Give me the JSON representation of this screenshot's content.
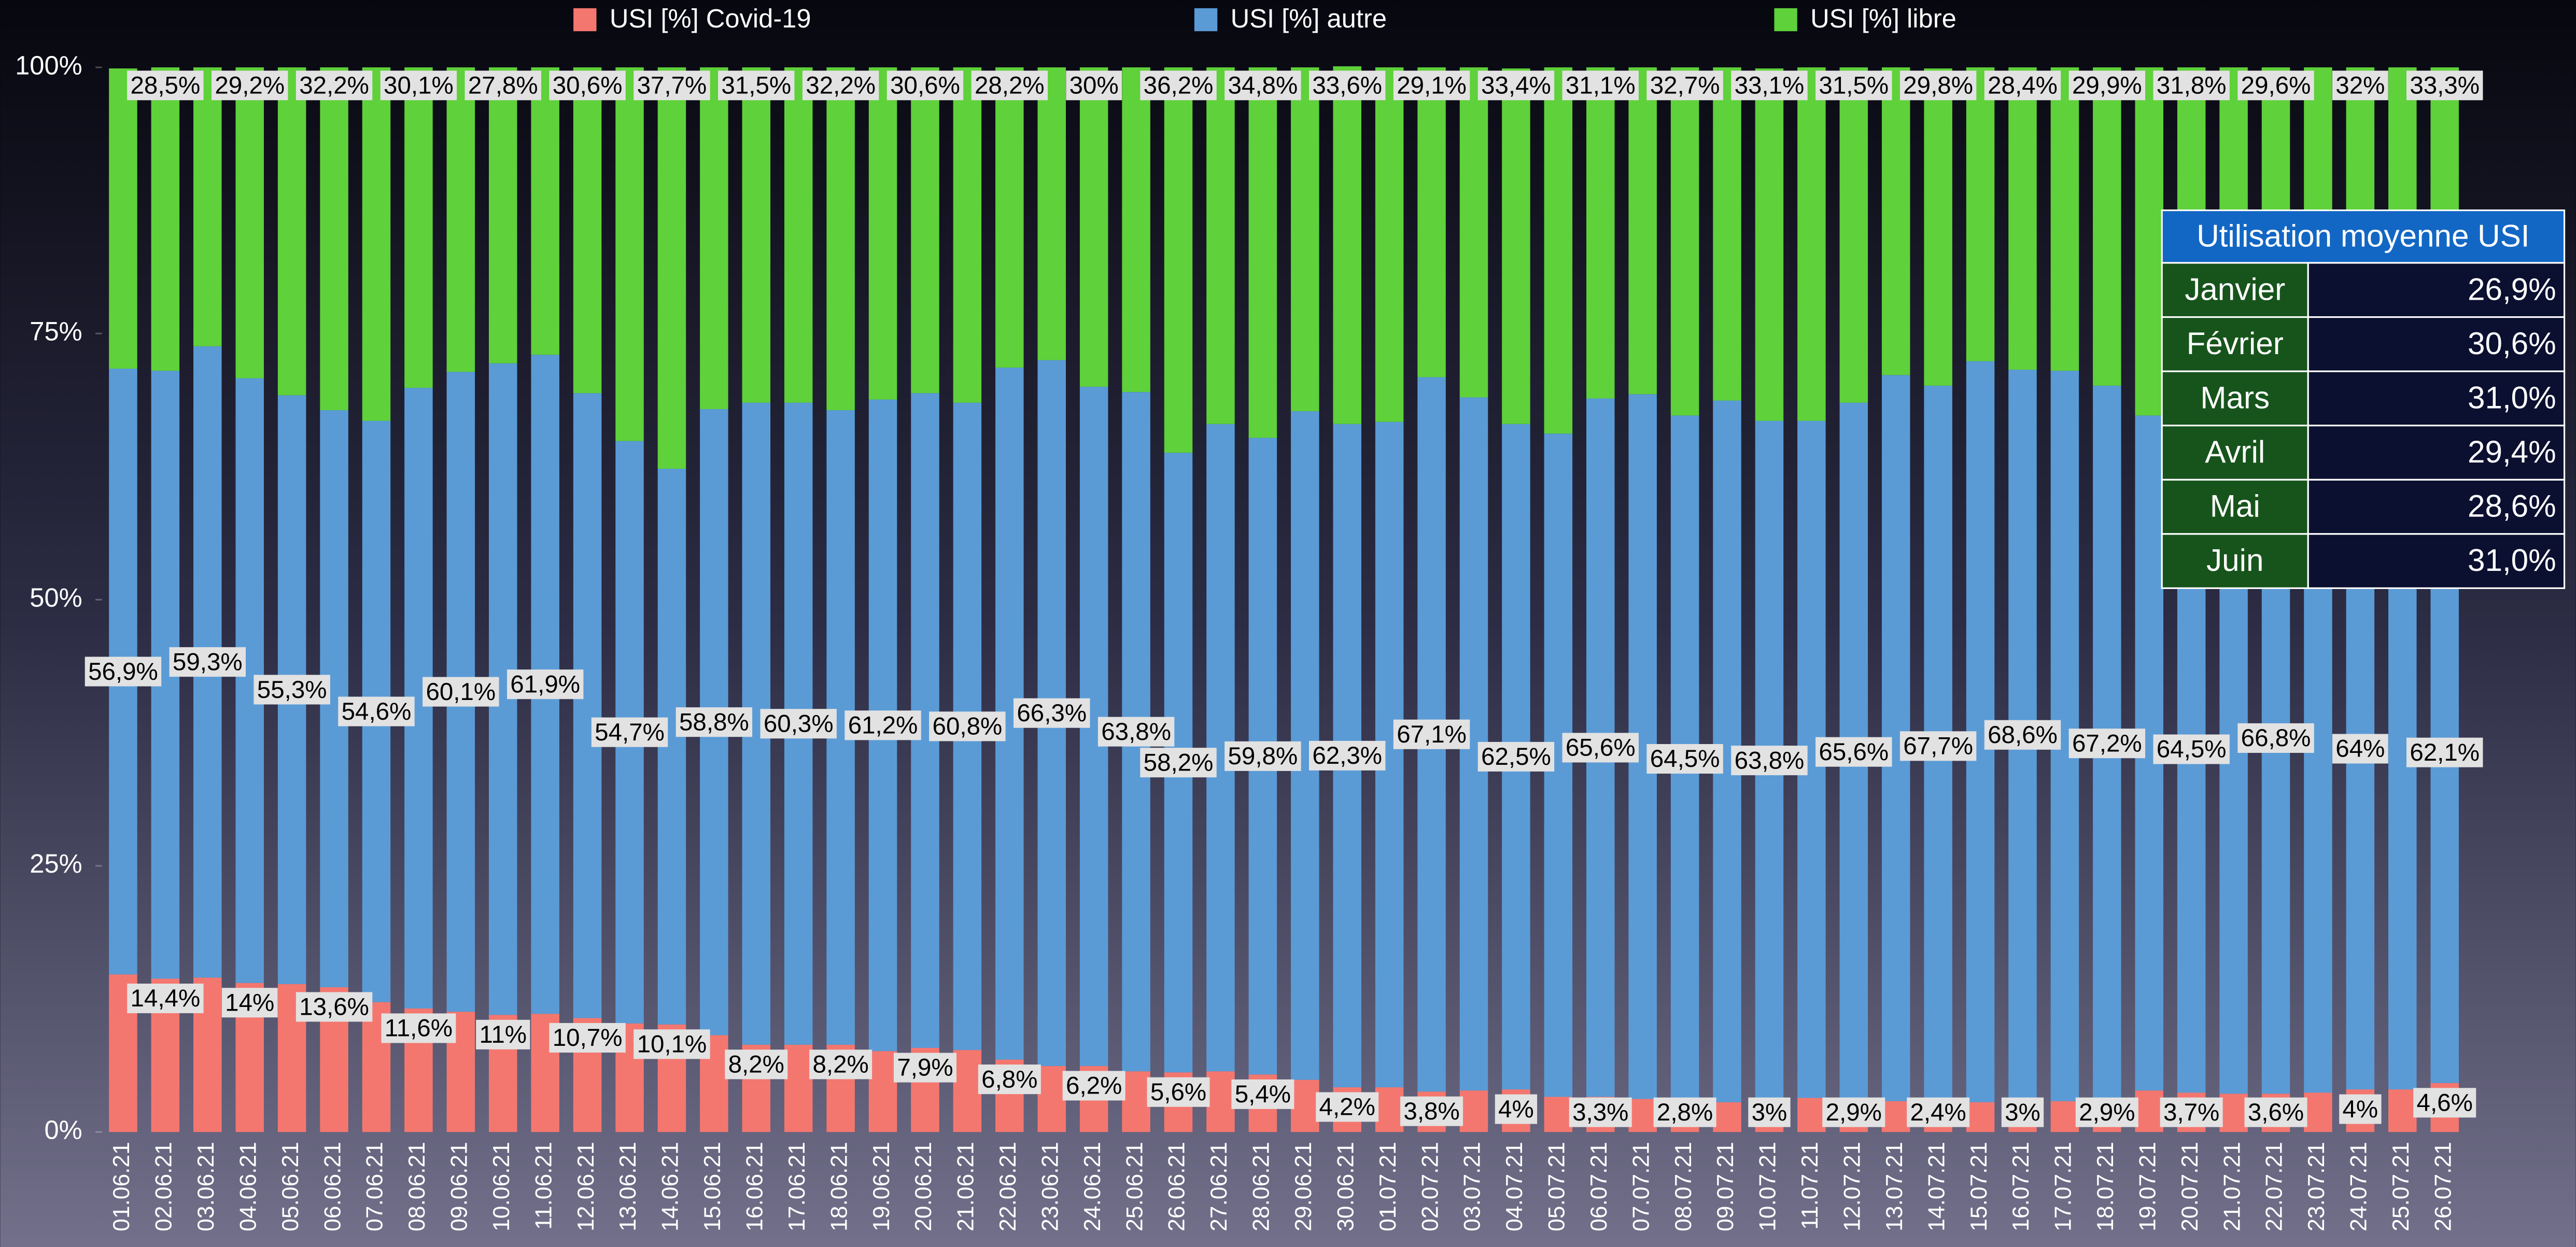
{
  "chart_data": {
    "type": "stacked_bar",
    "categories": [
      "01.06.21",
      "02.06.21",
      "03.06.21",
      "04.06.21",
      "05.06.21",
      "06.06.21",
      "07.06.21",
      "08.06.21",
      "09.06.21",
      "10.06.21",
      "11.06.21",
      "12.06.21",
      "13.06.21",
      "14.06.21",
      "15.06.21",
      "16.06.21",
      "17.06.21",
      "18.06.21",
      "19.06.21",
      "20.06.21",
      "21.06.21",
      "22.06.21",
      "23.06.21",
      "24.06.21",
      "25.06.21",
      "26.06.21",
      "27.06.21",
      "28.06.21",
      "29.06.21",
      "30.06.21",
      "01.07.21",
      "02.07.21",
      "03.07.21",
      "04.07.21",
      "05.07.21",
      "06.07.21",
      "07.07.21",
      "08.07.21",
      "09.07.21",
      "10.07.21",
      "11.07.21",
      "12.07.21",
      "13.07.21",
      "14.07.21",
      "15.07.21",
      "16.07.21",
      "17.07.21",
      "18.07.21",
      "19.07.21",
      "20.07.21",
      "21.07.21",
      "22.07.21",
      "23.07.21",
      "24.07.21",
      "25.07.21",
      "26.07.21"
    ],
    "series": [
      {
        "name": "USI [%] Covid-19",
        "color": "#f4776f",
        "values": [
          14.8,
          14.4,
          14.5,
          14,
          13.9,
          13.6,
          12.2,
          11.6,
          11.3,
          11,
          11.1,
          10.7,
          10.2,
          10.1,
          9.1,
          8.2,
          8.2,
          8.2,
          7.6,
          7.9,
          7.7,
          6.8,
          6.2,
          6.2,
          5.7,
          5.6,
          5.7,
          5.4,
          4.9,
          4.2,
          4.2,
          3.8,
          3.9,
          4,
          3.3,
          3.3,
          3.1,
          2.8,
          2.8,
          3,
          3.2,
          2.9,
          2.9,
          2.4,
          2.8,
          3,
          2.9,
          2.9,
          3.9,
          3.7,
          3.6,
          3.6,
          3.7,
          4,
          4,
          4.6
        ],
        "value_labels": [
          null,
          "14,4%",
          null,
          "14%",
          null,
          "13,6%",
          null,
          "11,6%",
          null,
          "11%",
          null,
          "10,7%",
          null,
          "10,1%",
          null,
          "8,2%",
          null,
          "8,2%",
          null,
          "7,9%",
          null,
          "6,8%",
          null,
          "6,2%",
          null,
          "5,6%",
          null,
          "5,4%",
          null,
          "4,2%",
          null,
          "3,8%",
          null,
          "4%",
          null,
          "3,3%",
          null,
          "2,8%",
          null,
          "3%",
          null,
          "2,9%",
          null,
          "2,4%",
          null,
          "3%",
          null,
          "2,9%",
          null,
          "3,7%",
          null,
          "3,6%",
          null,
          "4%",
          null,
          "4,6%"
        ]
      },
      {
        "name": "USI [%] autre",
        "color": "#5a9bd6",
        "values": [
          56.9,
          57.1,
          59.3,
          56.8,
          55.3,
          54.2,
          54.6,
          58.3,
          60.1,
          61.2,
          61.9,
          58.7,
          54.7,
          52.2,
          58.8,
          60.3,
          60.3,
          59.6,
          61.2,
          61.5,
          60.8,
          65,
          66.3,
          63.8,
          63.8,
          58.2,
          60.8,
          59.8,
          62.8,
          62.3,
          62.5,
          67.1,
          65.1,
          62.5,
          62.3,
          65.6,
          66.2,
          64.5,
          65.9,
          63.8,
          63.6,
          65.6,
          68.2,
          67.7,
          69.6,
          68.6,
          68.6,
          67.2,
          63.4,
          64.5,
          65.4,
          66.8,
          65.3,
          64,
          63,
          62.1
        ],
        "value_labels": [
          "56,9%",
          null,
          "59,3%",
          null,
          "55,3%",
          null,
          "54,6%",
          null,
          "60,1%",
          null,
          "61,9%",
          null,
          "54,7%",
          null,
          "58,8%",
          null,
          "60,3%",
          null,
          "61,2%",
          null,
          "60,8%",
          null,
          "66,3%",
          null,
          "63,8%",
          "58,2%",
          null,
          "59,8%",
          null,
          "62,3%",
          null,
          "67,1%",
          null,
          "62,5%",
          null,
          "65,6%",
          null,
          "64,5%",
          null,
          "63,8%",
          null,
          "65,6%",
          null,
          "67,7%",
          null,
          "68,6%",
          null,
          "67,2%",
          null,
          "64,5%",
          null,
          "66,8%",
          null,
          "64%",
          null,
          "62,1%"
        ]
      },
      {
        "name": "USI [%] libre",
        "color": "#5fd13a",
        "values": [
          28.2,
          28.5,
          26.2,
          29.2,
          30.8,
          32.2,
          33.2,
          30.1,
          28.6,
          27.8,
          27,
          30.6,
          35.1,
          37.7,
          32.1,
          31.5,
          31.5,
          32.2,
          31.2,
          30.6,
          31.5,
          28.2,
          27.5,
          30,
          30.5,
          36.2,
          33.5,
          34.8,
          32.3,
          33.6,
          33.3,
          29.1,
          31,
          33.4,
          34.4,
          31.1,
          30.7,
          32.7,
          31.3,
          33.1,
          33.2,
          31.5,
          28.9,
          29.8,
          27.6,
          28.4,
          28.5,
          29.9,
          32.7,
          31.8,
          31,
          29.6,
          31,
          32,
          33,
          33.3
        ],
        "value_labels": [
          null,
          "28,5%",
          null,
          "29,2%",
          null,
          "32,2%",
          null,
          "30,1%",
          null,
          "27,8%",
          null,
          "30,6%",
          null,
          "37,7%",
          null,
          "31,5%",
          null,
          "32,2%",
          null,
          "30,6%",
          null,
          "28,2%",
          null,
          "30%",
          null,
          "36,2%",
          null,
          "34,8%",
          null,
          "33,6%",
          null,
          "29,1%",
          null,
          "33,4%",
          null,
          "31,1%",
          null,
          "32,7%",
          null,
          "33,1%",
          null,
          "31,5%",
          null,
          "29,8%",
          null,
          "28,4%",
          null,
          "29,9%",
          null,
          "31,8%",
          null,
          "29,6%",
          null,
          "32%",
          null,
          "33,3%"
        ]
      }
    ],
    "ylim": [
      0,
      100
    ],
    "yticks": [
      {
        "value": 0,
        "label": "0%"
      },
      {
        "value": 25,
        "label": "25%"
      },
      {
        "value": 50,
        "label": "50%"
      },
      {
        "value": 75,
        "label": "75%"
      },
      {
        "value": 100,
        "label": "100%"
      }
    ],
    "legend": "top",
    "table": {
      "title": "Utilisation moyenne USI",
      "rows": [
        [
          "Janvier",
          "26,9%"
        ],
        [
          "Février",
          "30,6%"
        ],
        [
          "Mars",
          "31,0%"
        ],
        [
          "Avril",
          "29,4%"
        ],
        [
          "Mai",
          "28,6%"
        ],
        [
          "Juin",
          "31,0%"
        ]
      ]
    }
  }
}
